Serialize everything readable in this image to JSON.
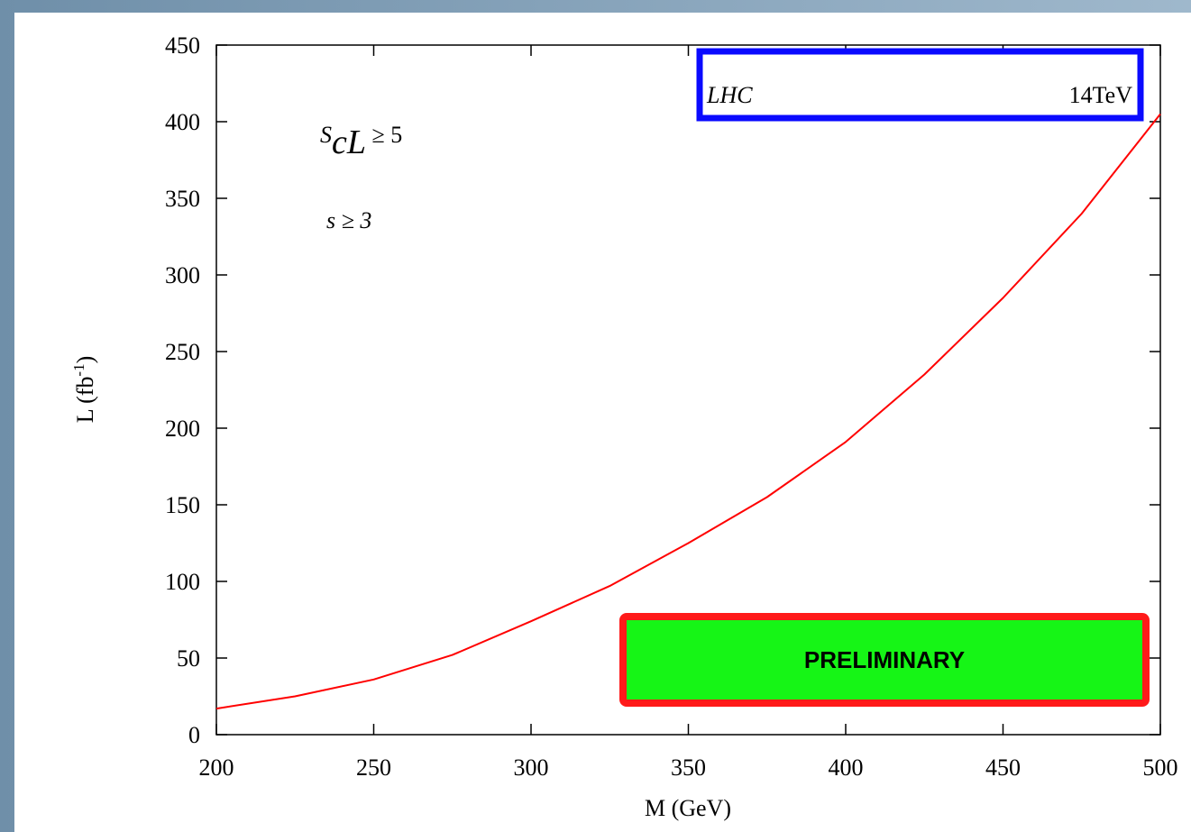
{
  "chart_data": {
    "type": "line",
    "x_label": "M (GeV)",
    "y_label_parts": [
      "L (fb",
      "-1",
      ")"
    ],
    "x": [
      200,
      225,
      250,
      275,
      300,
      325,
      350,
      375,
      400,
      425,
      450,
      475,
      500
    ],
    "series": [
      {
        "color": "#ff0000",
        "values": [
          17,
          25,
          36,
          52,
          74,
          97,
          125,
          155,
          191,
          235,
          285,
          340,
          405
        ]
      }
    ],
    "xlim": [
      200,
      500
    ],
    "xticks": [
      200,
      250,
      300,
      350,
      400,
      450,
      500
    ],
    "ylim": [
      0,
      450
    ],
    "yticks": [
      0,
      50,
      100,
      150,
      200,
      250,
      300,
      350,
      400,
      450
    ],
    "annotations": {
      "scl": [
        "S",
        "cL",
        " ≥ 5"
      ],
      "s": "s ≥ 3",
      "lhc": [
        "LHC",
        "14TeV"
      ],
      "preliminary": "PRELIMINARY"
    }
  }
}
